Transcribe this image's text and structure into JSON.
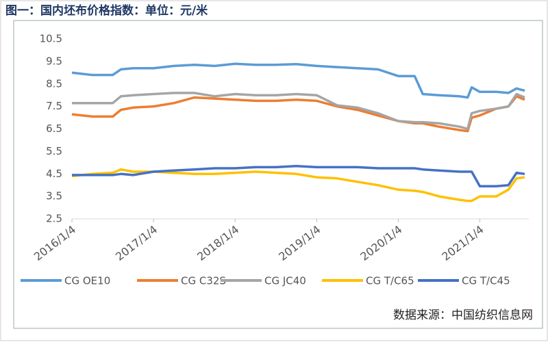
{
  "chart_data": {
    "type": "line",
    "title": "图一：国内坯布价格指数：单位：元/米",
    "source": "数据来源：中国纺织信息网",
    "x": [
      2016.0,
      2016.25,
      2016.5,
      2016.6,
      2016.75,
      2017.0,
      2017.25,
      2017.5,
      2017.75,
      2018.0,
      2018.25,
      2018.5,
      2018.75,
      2019.0,
      2019.25,
      2019.5,
      2019.75,
      2020.0,
      2020.2,
      2020.3,
      2020.5,
      2020.75,
      2020.85,
      2020.9,
      2021.0,
      2021.2,
      2021.35,
      2021.45,
      2021.55
    ],
    "xlim": [
      2016.0,
      2021.6
    ],
    "xticks": [
      {
        "value": 2016.0,
        "label": "2016/1/4"
      },
      {
        "value": 2017.0,
        "label": "2017/1/4"
      },
      {
        "value": 2018.0,
        "label": "2018/1/4"
      },
      {
        "value": 2019.0,
        "label": "2019/1/4"
      },
      {
        "value": 2020.0,
        "label": "2020/1/4"
      },
      {
        "value": 2021.0,
        "label": "2021/1/4"
      }
    ],
    "ylim": [
      2.5,
      10.5
    ],
    "yticks": [
      2.5,
      3.5,
      4.5,
      5.5,
      6.5,
      7.5,
      8.5,
      9.5,
      10.5
    ],
    "grid": false,
    "legend": "bottom",
    "series": [
      {
        "name": "CG OE10",
        "color": "#5b9bd5",
        "values": [
          9.0,
          8.9,
          8.9,
          9.15,
          9.2,
          9.2,
          9.3,
          9.35,
          9.3,
          9.4,
          9.35,
          9.35,
          9.38,
          9.3,
          9.25,
          9.2,
          9.15,
          8.85,
          8.85,
          8.05,
          8.0,
          7.95,
          7.9,
          8.35,
          8.15,
          8.15,
          8.1,
          8.3,
          8.2
        ]
      },
      {
        "name": "CG C32S",
        "color": "#ed7d31",
        "values": [
          7.15,
          7.05,
          7.05,
          7.35,
          7.45,
          7.5,
          7.65,
          7.9,
          7.85,
          7.8,
          7.75,
          7.75,
          7.8,
          7.75,
          7.5,
          7.35,
          7.1,
          6.85,
          6.75,
          6.75,
          6.6,
          6.45,
          6.4,
          7.0,
          7.1,
          7.4,
          7.5,
          7.95,
          7.8
        ]
      },
      {
        "name": "CG JC40",
        "color": "#a5a5a5",
        "values": [
          7.65,
          7.65,
          7.65,
          7.95,
          8.0,
          8.05,
          8.1,
          8.1,
          7.95,
          8.05,
          8.0,
          8.0,
          8.05,
          8.0,
          7.55,
          7.45,
          7.2,
          6.85,
          6.8,
          6.8,
          6.75,
          6.6,
          6.5,
          7.2,
          7.3,
          7.4,
          7.5,
          8.05,
          7.9
        ]
      },
      {
        "name": "CG T/C65",
        "color": "#ffc000",
        "values": [
          4.4,
          4.5,
          4.55,
          4.7,
          4.6,
          4.6,
          4.55,
          4.5,
          4.5,
          4.55,
          4.6,
          4.55,
          4.5,
          4.35,
          4.3,
          4.15,
          4.0,
          3.8,
          3.75,
          3.7,
          3.5,
          3.35,
          3.3,
          3.3,
          3.5,
          3.5,
          3.8,
          4.3,
          4.35
        ]
      },
      {
        "name": "CG T/C45",
        "color": "#4472c4",
        "values": [
          4.45,
          4.45,
          4.45,
          4.5,
          4.45,
          4.6,
          4.65,
          4.7,
          4.75,
          4.75,
          4.8,
          4.8,
          4.85,
          4.8,
          4.8,
          4.8,
          4.75,
          4.75,
          4.75,
          4.7,
          4.65,
          4.6,
          4.6,
          4.6,
          3.95,
          3.95,
          4.0,
          4.55,
          4.5
        ]
      }
    ]
  }
}
